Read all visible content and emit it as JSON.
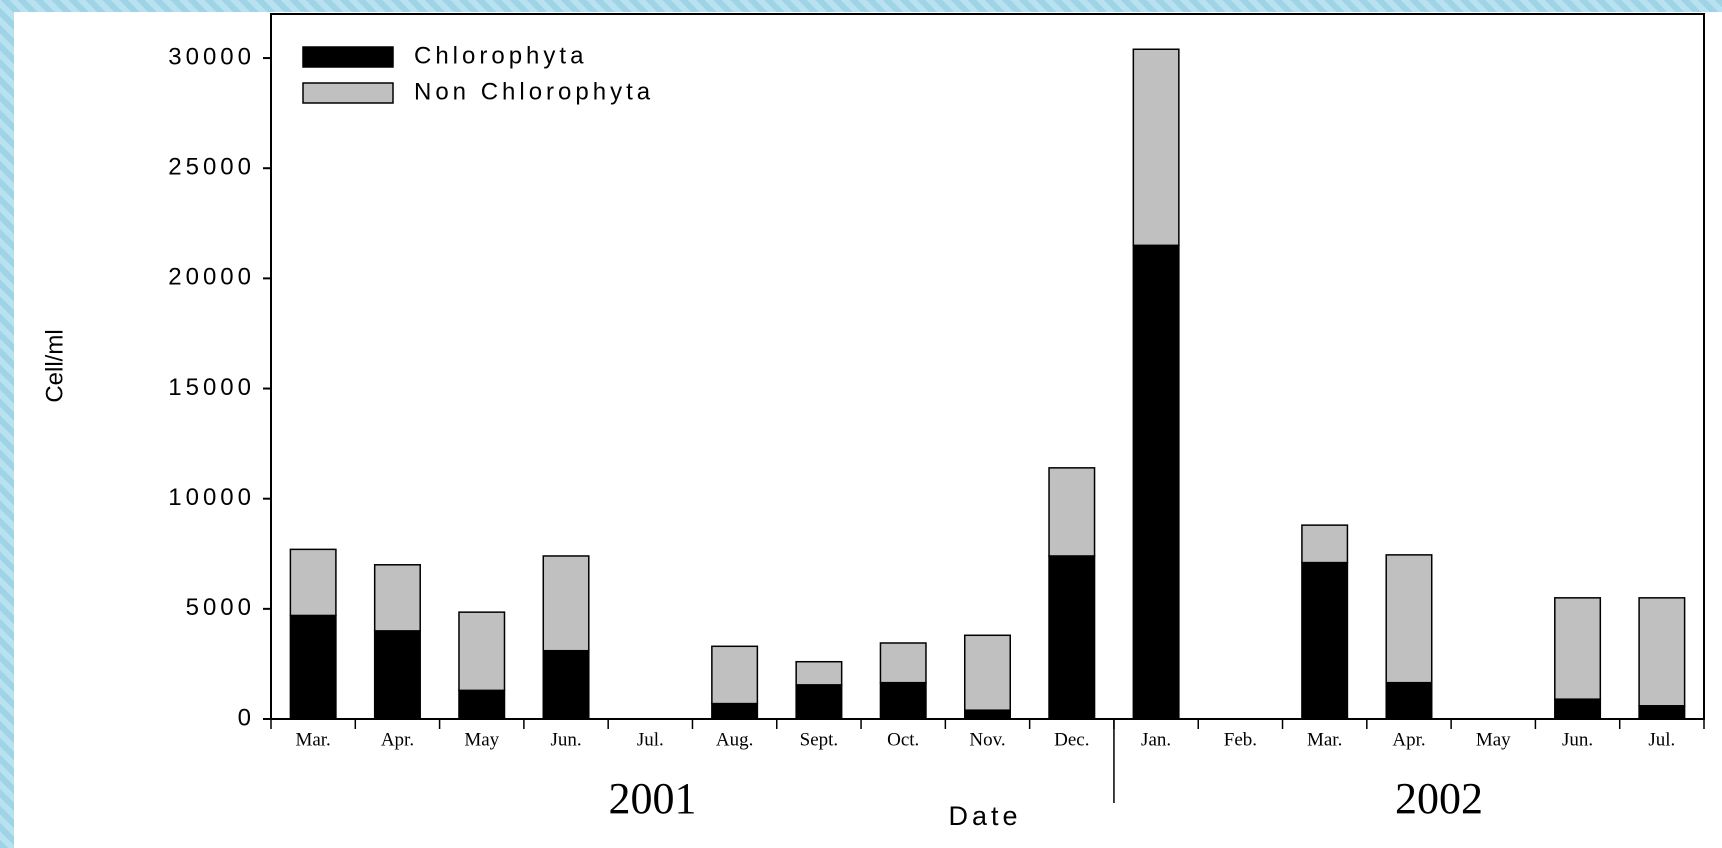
{
  "chart_data": {
    "type": "stacked_bar",
    "y_label": "Cell/ml",
    "x_label": "Date",
    "group_labels": [
      "2001",
      "2002"
    ],
    "categories": [
      "Mar.",
      "Apr.",
      "May",
      "Jun.",
      "Jul.",
      "Aug.",
      "Sept.",
      "Oct.",
      "Nov.",
      "Dec.",
      "Jan.",
      "Feb.",
      "Mar.",
      "Apr.",
      "May",
      "Jun.",
      "Jul."
    ],
    "series": [
      {
        "name": "Chlorophyta",
        "color": "#000000",
        "values": [
          4700,
          4000,
          1300,
          3100,
          0,
          700,
          1550,
          1650,
          400,
          7400,
          21500,
          0,
          7100,
          1650,
          0,
          900,
          600
        ]
      },
      {
        "name": "Non Chlorophyta",
        "color": "#c0c0c0",
        "values": [
          3000,
          3000,
          3550,
          4300,
          0,
          2600,
          1050,
          1800,
          3400,
          4000,
          8900,
          0,
          1700,
          5800,
          0,
          4600,
          4900
        ]
      }
    ],
    "ylim": [
      0,
      32000
    ],
    "yticks": [
      0,
      5000,
      10000,
      15000,
      20000,
      25000,
      30000
    ],
    "legend": "upper left"
  }
}
